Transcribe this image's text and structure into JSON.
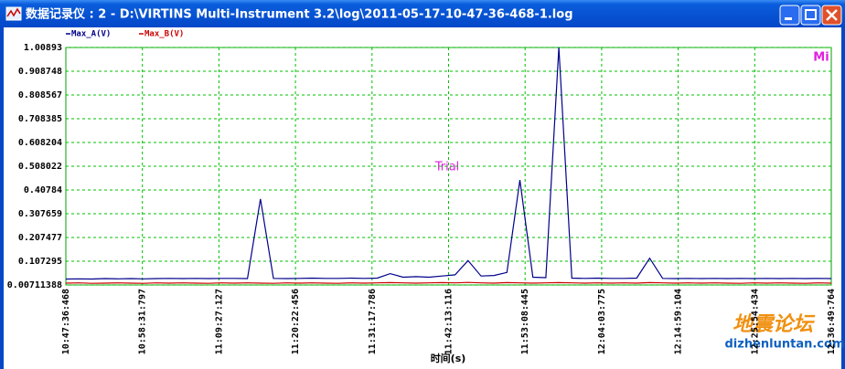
{
  "window": {
    "title": "数据记录仪 : 2 - D:\\VIRTINS Multi-Instrument 3.2\\log\\2011-05-17-10-47-36-468-1.log"
  },
  "chart_data": {
    "type": "line",
    "series": [
      {
        "name": "Max_A(V)",
        "color": "#00008b",
        "values": [
          0.032,
          0.033,
          0.032,
          0.034,
          0.033,
          0.034,
          0.033,
          0.034,
          0.035,
          0.034,
          0.035,
          0.034,
          0.035,
          0.035,
          0.034,
          0.37,
          0.035,
          0.034,
          0.035,
          0.036,
          0.035,
          0.035,
          0.036,
          0.035,
          0.036,
          0.055,
          0.04,
          0.042,
          0.04,
          0.045,
          0.05,
          0.11,
          0.045,
          0.047,
          0.06,
          0.45,
          0.04,
          0.038,
          1.00893,
          0.036,
          0.035,
          0.036,
          0.035,
          0.035,
          0.036,
          0.12,
          0.035,
          0.034,
          0.035,
          0.034,
          0.035,
          0.034,
          0.035,
          0.034,
          0.035,
          0.034,
          0.035,
          0.034,
          0.035,
          0.034
        ]
      },
      {
        "name": "Max_B(V)",
        "color": "#cc0000",
        "values": [
          0.015,
          0.016,
          0.014,
          0.015,
          0.016,
          0.015,
          0.014,
          0.016,
          0.015,
          0.016,
          0.015,
          0.014,
          0.016,
          0.015,
          0.016,
          0.015,
          0.014,
          0.016,
          0.015,
          0.016,
          0.015,
          0.014,
          0.016,
          0.015,
          0.016,
          0.017,
          0.016,
          0.015,
          0.016,
          0.017,
          0.016,
          0.018,
          0.016,
          0.015,
          0.017,
          0.016,
          0.015,
          0.016,
          0.017,
          0.016,
          0.015,
          0.016,
          0.015,
          0.016,
          0.015,
          0.017,
          0.016,
          0.015,
          0.016,
          0.015,
          0.016,
          0.015,
          0.014,
          0.016,
          0.015,
          0.016,
          0.015,
          0.014,
          0.016,
          0.015
        ]
      }
    ],
    "ylim": [
      0.00711388,
      1.00893
    ],
    "yticks": [
      0.00711388,
      0.107295,
      0.207477,
      0.307659,
      0.40784,
      0.508022,
      0.608204,
      0.708385,
      0.808567,
      0.908748,
      1.00893
    ],
    "xtick_labels": [
      "10:47:36:468",
      "10:58:31:797",
      "11:09:27:127",
      "11:20:22:456",
      "11:31:17:786",
      "11:42:13:116",
      "11:53:08:445",
      "12:04:03:775",
      "12:14:59:104",
      "12:25:54:434",
      "12:36:49:764"
    ],
    "x_label": "时间(s)",
    "annotation": "Trial",
    "logo": "Mi",
    "grid": true
  },
  "watermark": {
    "text": "地震论坛",
    "url": "dizhenluntan.com"
  }
}
